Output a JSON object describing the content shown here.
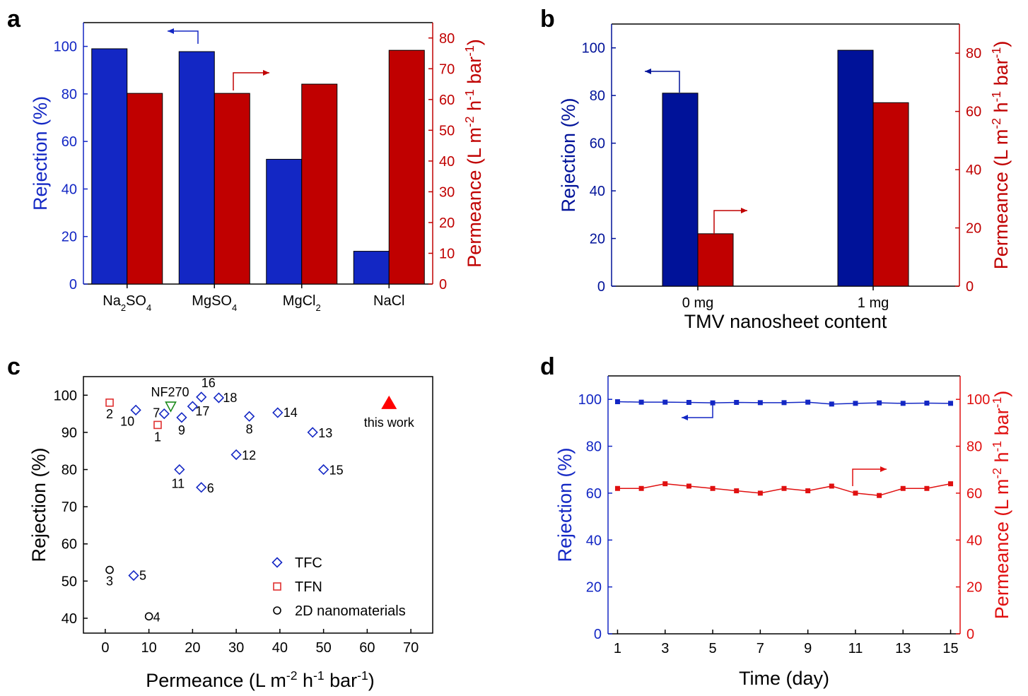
{
  "panel_labels": [
    "a",
    "b",
    "c",
    "d"
  ],
  "colors": {
    "blue": "#1327c4",
    "navy": "#001299",
    "red": "#cc0000",
    "green": "#1a8a1a",
    "black": "#000000"
  },
  "chart_data": [
    {
      "type": "bar",
      "panel": "a",
      "categories": [
        "Na2SO4",
        "MgSO4",
        "MgCl2",
        "NaCl"
      ],
      "category_labels": [
        {
          "base": "Na",
          "sub": "2",
          "base2": "SO",
          "sub2": "4"
        },
        {
          "base": "MgSO",
          "sub": "4",
          "base2": "",
          "sub2": ""
        },
        {
          "base": "MgCl",
          "sub": "2",
          "base2": "",
          "sub2": ""
        },
        {
          "base": "NaCl",
          "sub": "",
          "base2": "",
          "sub2": ""
        }
      ],
      "series": [
        {
          "name": "Rejection",
          "axis": "left",
          "color": "#1327c4",
          "values": [
            99,
            97.8,
            52.5,
            13.8
          ]
        },
        {
          "name": "Permeance",
          "axis": "right",
          "color": "#c00000",
          "values": [
            62,
            62,
            65,
            76
          ]
        }
      ],
      "ylabel_left": "Rejection (%)",
      "ylabel_right": {
        "text": "Permeance (L m",
        "sup1": "-2",
        "mid": " h",
        "sup2": "-1",
        "end": " bar",
        "sup3": "-1",
        "close": ")"
      },
      "ylim_left": [
        0,
        110
      ],
      "yticks_left": [
        0,
        20,
        40,
        60,
        80,
        100
      ],
      "ylim_right": [
        0,
        85
      ],
      "yticks_right": [
        0,
        10,
        20,
        30,
        40,
        50,
        60,
        70,
        80
      ]
    },
    {
      "type": "bar",
      "panel": "b",
      "categories": [
        "0 mg",
        "1 mg"
      ],
      "xlabel": "TMV nanosheet content",
      "series": [
        {
          "name": "Rejection",
          "axis": "left",
          "color": "#001299",
          "values": [
            81,
            99
          ]
        },
        {
          "name": "Permeance",
          "axis": "right",
          "color": "#c00000",
          "values": [
            18,
            63
          ]
        }
      ],
      "ylabel_left": "Rejection (%)",
      "ylabel_right": {
        "text": "Permeance (L m",
        "sup1": "-2",
        "mid": " h",
        "sup2": "-1",
        "end": " bar",
        "sup3": "-1",
        "close": ")"
      },
      "ylim_left": [
        0,
        110
      ],
      "yticks_left": [
        0,
        20,
        40,
        60,
        80,
        100
      ],
      "ylim_right": [
        0,
        90
      ],
      "yticks_right": [
        0,
        20,
        40,
        60,
        80
      ]
    },
    {
      "type": "scatter",
      "panel": "c",
      "xlabel": {
        "text": "Permeance (L m",
        "sup1": "-2",
        "mid": " h",
        "sup2": "-1",
        "end": " bar",
        "sup3": "-1",
        "close": ")"
      },
      "ylabel": "Rejection (%)",
      "xlim": [
        -5,
        75
      ],
      "xticks": [
        0,
        10,
        20,
        30,
        40,
        50,
        60,
        70
      ],
      "ylim": [
        36,
        105
      ],
      "yticks": [
        40,
        50,
        60,
        70,
        80,
        90,
        100
      ],
      "series": [
        {
          "name": "TFC",
          "marker": "diamond",
          "color": "#1327c4",
          "points": [
            {
              "x": 7,
              "y": 96,
              "label": "10"
            },
            {
              "x": 13.5,
              "y": 95,
              "label": "7"
            },
            {
              "x": 17.5,
              "y": 94,
              "label": "9"
            },
            {
              "x": 20,
              "y": 97,
              "label": "17"
            },
            {
              "x": 22,
              "y": 99.5,
              "label": "16"
            },
            {
              "x": 26,
              "y": 99.3,
              "label": "18"
            },
            {
              "x": 33,
              "y": 94.3,
              "label": "8"
            },
            {
              "x": 39.5,
              "y": 95.3,
              "label": "14"
            },
            {
              "x": 47.5,
              "y": 90,
              "label": "13"
            },
            {
              "x": 30,
              "y": 84,
              "label": "12"
            },
            {
              "x": 50,
              "y": 80,
              "label": "15"
            },
            {
              "x": 17,
              "y": 80,
              "label": "11"
            },
            {
              "x": 22,
              "y": 75.2,
              "label": "6"
            },
            {
              "x": 6.5,
              "y": 51.5,
              "label": "5"
            }
          ]
        },
        {
          "name": "TFN",
          "marker": "square",
          "color": "#e03030",
          "points": [
            {
              "x": 1,
              "y": 98,
              "label": "2"
            },
            {
              "x": 12,
              "y": 92,
              "label": "1"
            }
          ]
        },
        {
          "name": "2D nanomaterials",
          "marker": "circle",
          "color": "#000000",
          "points": [
            {
              "x": 1,
              "y": 53,
              "label": "3"
            },
            {
              "x": 10,
              "y": 40.5,
              "label": "4"
            }
          ]
        },
        {
          "name": "",
          "marker": "triangle-down",
          "color": "#1a8a1a",
          "points": [
            {
              "x": 15,
              "y": 97,
              "label": "NF270"
            }
          ]
        },
        {
          "name": "",
          "marker": "triangle-up-filled",
          "color": "#ff0000",
          "points": [
            {
              "x": 65,
              "y": 98,
              "label": "this work"
            }
          ]
        }
      ],
      "legend": [
        "TFC",
        "TFN",
        "2D nanomaterials"
      ]
    },
    {
      "type": "line",
      "panel": "d",
      "x": [
        1,
        2,
        3,
        4,
        5,
        6,
        7,
        8,
        9,
        10,
        11,
        12,
        13,
        14,
        15
      ],
      "xlabel": "Time (day)",
      "xlim": [
        0.6,
        15.4
      ],
      "xticks": [
        1,
        3,
        5,
        7,
        9,
        11,
        13,
        15
      ],
      "series": [
        {
          "name": "Rejection",
          "axis": "left",
          "color": "#1327c4",
          "values": [
            99,
            98.8,
            98.8,
            98.7,
            98.5,
            98.7,
            98.6,
            98.6,
            98.8,
            98,
            98.3,
            98.5,
            98.3,
            98.4,
            98.3
          ]
        },
        {
          "name": "Permeance",
          "axis": "right",
          "color": "#e01010",
          "values": [
            62,
            62,
            64,
            63,
            62,
            61,
            60,
            62,
            61,
            63,
            60,
            59,
            62,
            62,
            64
          ]
        }
      ],
      "ylabel_left": "Rejection (%)",
      "ylabel_right": {
        "text": "Permeance (L m",
        "sup1": "-2",
        "mid": " h",
        "sup2": "-1",
        "end": " bar",
        "sup3": "-1",
        "close": ")"
      },
      "ylim_left": [
        0,
        110
      ],
      "yticks_left": [
        0,
        20,
        40,
        60,
        80,
        100
      ],
      "ylim_right": [
        0,
        110
      ],
      "yticks_right": [
        0,
        20,
        40,
        60,
        80,
        100
      ]
    }
  ]
}
